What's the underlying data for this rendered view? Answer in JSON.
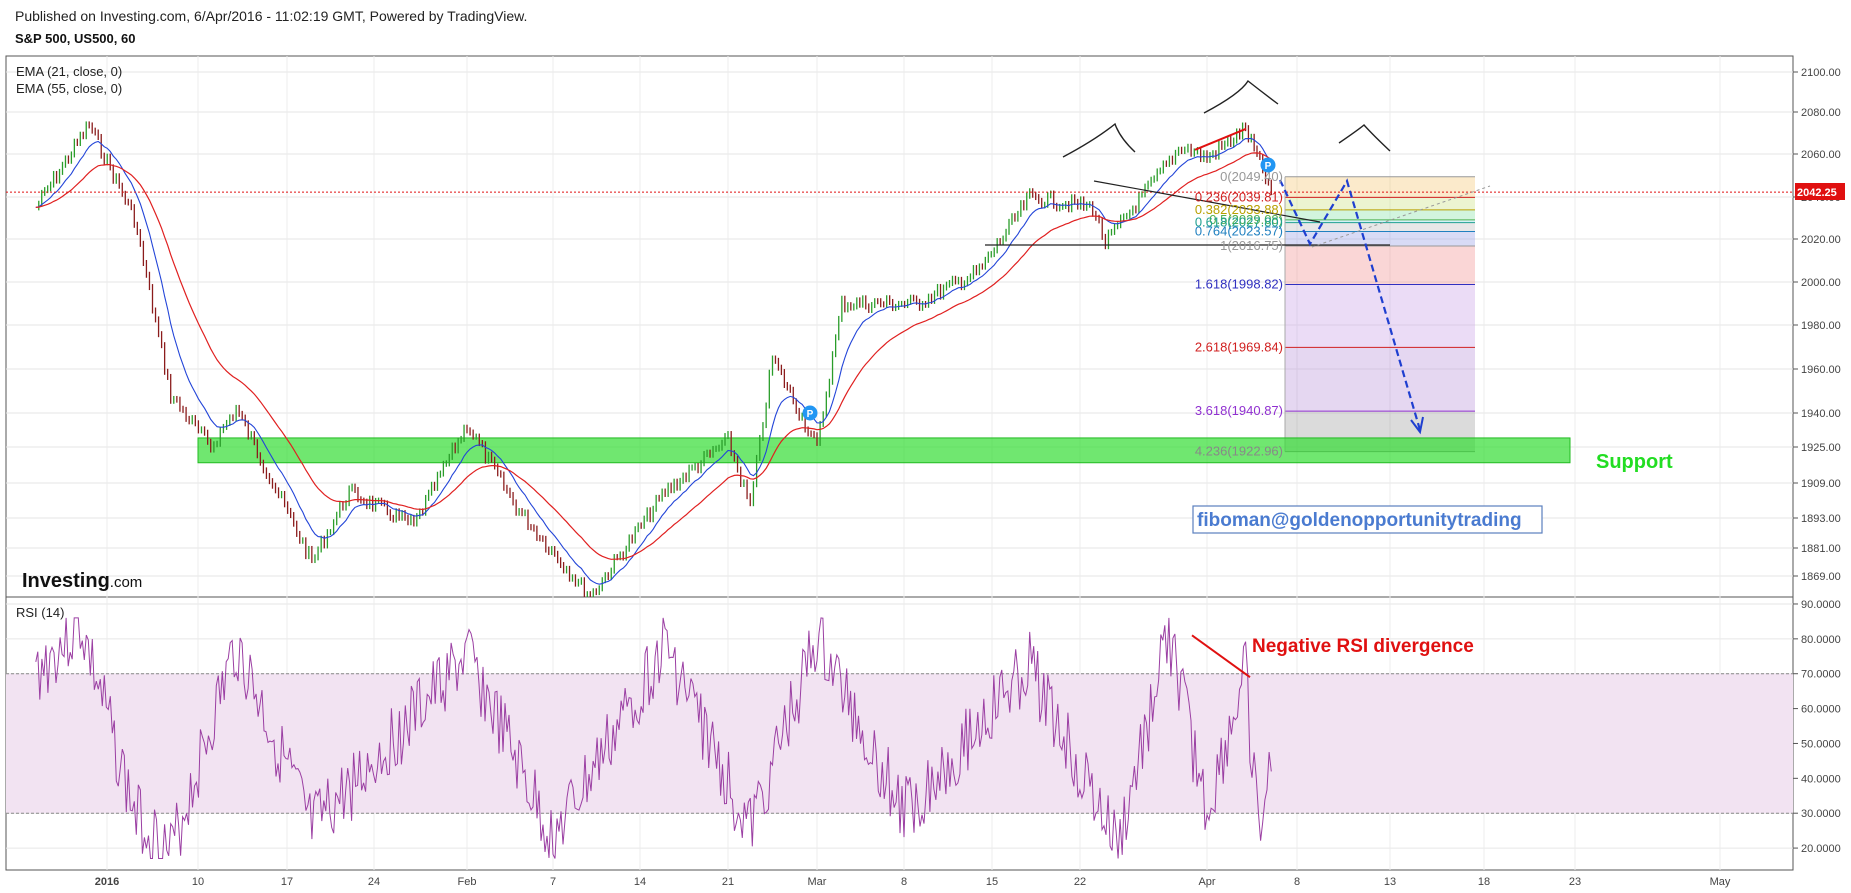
{
  "header": {
    "published": "Published on Investing.com, 6/Apr/2016 - 11:02:19 GMT, Powered by TradingView.",
    "symbol": "S&P 500, US500, 60"
  },
  "logo": {
    "bold": "Investing",
    "suffix": ".com"
  },
  "indicators": {
    "ema21": "EMA (21, close, 0)",
    "ema55": "EMA (55, close, 0)",
    "rsi": "RSI (14)"
  },
  "colors": {
    "price_up": "#2a9d2a",
    "price_down": "#8b1c1c",
    "ema21": "#2345d8",
    "ema55": "#e02020",
    "rsi_line": "#9b3fa3",
    "support": "#33dd33",
    "current_price": "#e01010",
    "annotation_red": "#e01010"
  },
  "annotations": {
    "support_label": "Support",
    "watermark": "fiboman@goldenopportunitytrading",
    "rsi_divergence": "Negative RSI divergence",
    "current_price": "2042.25",
    "pivot_marker": "P"
  },
  "chart_data": [
    {
      "type": "line",
      "title": "S&P 500, US500, 60",
      "y_axis_ticks": [
        "2100.00",
        "2080.00",
        "2060.00",
        "2040.00",
        "2020.00",
        "2000.00",
        "1980.00",
        "1960.00",
        "1940.00",
        "1925.00",
        "1909.00",
        "1893.00",
        "1881.00",
        "1869.00"
      ],
      "x_axis_ticks": [
        "2016",
        "10",
        "17",
        "24",
        "Feb",
        "7",
        "14",
        "21",
        "Mar",
        "8",
        "15",
        "22",
        "Apr",
        "8",
        "13",
        "18",
        "23",
        "May"
      ],
      "series": [
        {
          "name": "EMA (21, close, 0)"
        },
        {
          "name": "EMA (55, close, 0)"
        }
      ],
      "price_path": [
        {
          "x": "2016-12-23",
          "y": 2035
        },
        {
          "x": "2016-12-29",
          "y": 2074
        },
        {
          "x": "2016-01-04",
          "y": 2030
        },
        {
          "x": "2016-01-08",
          "y": 1948
        },
        {
          "x": "2016-01-12",
          "y": 1925
        },
        {
          "x": "2016-01-14",
          "y": 1942
        },
        {
          "x": "2016-01-20",
          "y": 1875
        },
        {
          "x": "2016-01-23",
          "y": 1905
        },
        {
          "x": "2016-01-28",
          "y": 1890
        },
        {
          "x": "2016-02-01",
          "y": 1935
        },
        {
          "x": "2016-02-05",
          "y": 1898
        },
        {
          "x": "2016-02-11",
          "y": 1860
        },
        {
          "x": "2016-02-17",
          "y": 1905
        },
        {
          "x": "2016-02-22",
          "y": 1928
        },
        {
          "x": "2016-02-24",
          "y": 1898
        },
        {
          "x": "2016-02-26",
          "y": 1965
        },
        {
          "x": "2016-03-01",
          "y": 1925
        },
        {
          "x": "2016-03-03",
          "y": 1990
        },
        {
          "x": "2016-03-09",
          "y": 1990
        },
        {
          "x": "2016-03-14",
          "y": 2005
        },
        {
          "x": "2016-03-18",
          "y": 2040
        },
        {
          "x": "2016-03-23",
          "y": 2035
        },
        {
          "x": "2016-03-24",
          "y": 2018
        },
        {
          "x": "2016-03-30",
          "y": 2064
        },
        {
          "x": "2016-04-01",
          "y": 2058
        },
        {
          "x": "2016-04-04",
          "y": 2072
        },
        {
          "x": "2016-04-06",
          "y": 2042.25
        }
      ],
      "current_price": 2042.25,
      "fibonacci_levels": [
        {
          "label": "0(2049.40)",
          "ratio": 0,
          "price": 2049.4
        },
        {
          "label": "0.236(2039.81)",
          "ratio": 0.236,
          "price": 2039.81
        },
        {
          "label": "0.382(2033.88)",
          "ratio": 0.382,
          "price": 2033.88
        },
        {
          "label": "0.5(2029.08)",
          "ratio": 0.5,
          "price": 2029.08
        },
        {
          "label": "0.618(2027.80)",
          "ratio": 0.618,
          "price": 2027.8
        },
        {
          "label": "0.764(2023.57)",
          "ratio": 0.764,
          "price": 2023.57
        },
        {
          "label": "1(2016.75)",
          "ratio": 1,
          "price": 2016.75
        },
        {
          "label": "1.618(1998.82)",
          "ratio": 1.618,
          "price": 1998.82
        },
        {
          "label": "2.618(1969.84)",
          "ratio": 2.618,
          "price": 1969.84
        },
        {
          "label": "3.618(1940.87)",
          "ratio": 3.618,
          "price": 1940.87
        },
        {
          "label": "4.236(1922.96)",
          "ratio": 4.236,
          "price": 1922.96
        }
      ],
      "support_zone": [
        1918,
        1929
      ]
    },
    {
      "type": "line",
      "title": "RSI (14)",
      "y_axis_ticks": [
        "90.0000",
        "80.0000",
        "70.0000",
        "60.0000",
        "50.0000",
        "40.0000",
        "30.0000",
        "20.0000"
      ],
      "overbought": 70,
      "oversold": 30,
      "rsi_path": [
        {
          "x": "2016-12-23",
          "y": 70
        },
        {
          "x": "2016-12-28",
          "y": 84
        },
        {
          "x": "2016-01-04",
          "y": 30
        },
        {
          "x": "2016-01-08",
          "y": 18
        },
        {
          "x": "2016-01-14",
          "y": 78
        },
        {
          "x": "2016-01-20",
          "y": 25
        },
        {
          "x": "2016-02-01",
          "y": 75
        },
        {
          "x": "2016-02-08",
          "y": 22
        },
        {
          "x": "2016-02-17",
          "y": 78
        },
        {
          "x": "2016-02-24",
          "y": 25
        },
        {
          "x": "2016-03-01",
          "y": 80
        },
        {
          "x": "2016-03-08",
          "y": 30
        },
        {
          "x": "2016-03-18",
          "y": 72
        },
        {
          "x": "2016-03-25",
          "y": 20
        },
        {
          "x": "2016-03-29",
          "y": 81
        },
        {
          "x": "2016-04-01",
          "y": 30
        },
        {
          "x": "2016-04-04",
          "y": 70
        },
        {
          "x": "2016-04-05",
          "y": 23
        },
        {
          "x": "2016-04-06",
          "y": 42
        }
      ]
    }
  ]
}
